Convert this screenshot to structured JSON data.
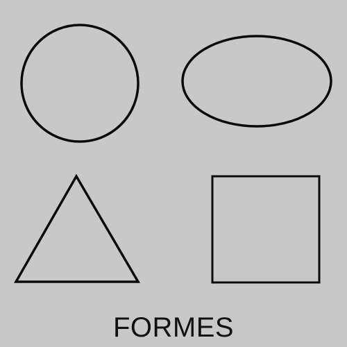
{
  "title": "FORMES",
  "shapes": [
    {
      "kind": "circle"
    },
    {
      "kind": "ellipse"
    },
    {
      "kind": "triangle"
    },
    {
      "kind": "square"
    }
  ],
  "colors": {
    "background": "#c8c8c8",
    "stroke": "#0a0a0a"
  }
}
